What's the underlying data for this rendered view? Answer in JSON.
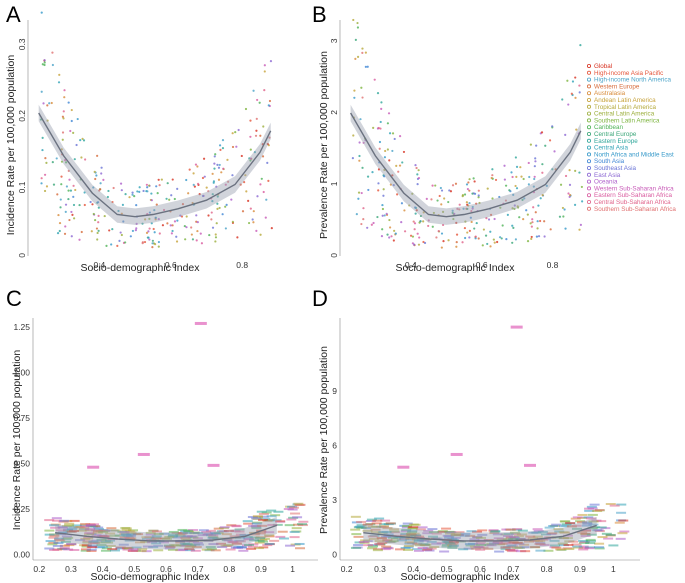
{
  "chart_data": [
    {
      "panel": "A",
      "type": "scatter",
      "xlabel": "Socio-demographic Index",
      "ylabel": "Incidence Rate per 100,000 population",
      "xlim": [
        0.2,
        0.92
      ],
      "ylim": [
        0,
        0.33
      ],
      "xticks": [
        0.4,
        0.6,
        0.8
      ],
      "yticks": [
        0.0,
        0.1,
        0.2,
        0.3
      ],
      "fit_curve": {
        "x": [
          0.23,
          0.3,
          0.38,
          0.45,
          0.5,
          0.55,
          0.62,
          0.7,
          0.78,
          0.85,
          0.88
        ],
        "y": [
          0.2,
          0.14,
          0.088,
          0.058,
          0.055,
          0.058,
          0.066,
          0.078,
          0.1,
          0.145,
          0.175
        ]
      }
    },
    {
      "panel": "B",
      "type": "scatter",
      "xlabel": "Socio-demographic Index",
      "ylabel": "Prevalence Rate per 100,000 population",
      "xlim": [
        0.2,
        0.92
      ],
      "ylim": [
        0,
        3.3
      ],
      "xticks": [
        0.4,
        0.6,
        0.8
      ],
      "yticks": [
        0,
        1,
        2,
        3
      ],
      "fit_curve": {
        "x": [
          0.23,
          0.3,
          0.38,
          0.45,
          0.5,
          0.55,
          0.62,
          0.7,
          0.78,
          0.85,
          0.88
        ],
        "y": [
          2.0,
          1.4,
          0.88,
          0.58,
          0.55,
          0.58,
          0.66,
          0.78,
          1.0,
          1.45,
          1.75
        ]
      },
      "legend": [
        {
          "label": "Global",
          "color": "#d7301f"
        },
        {
          "label": "High-income Asia Pacific",
          "color": "#e5553b"
        },
        {
          "label": "High-income North America",
          "color": "#4aa3c8"
        },
        {
          "label": "Western Europe",
          "color": "#d66a3a"
        },
        {
          "label": "Australasia",
          "color": "#d88c3b"
        },
        {
          "label": "Andean Latin America",
          "color": "#c7a23a"
        },
        {
          "label": "Tropical Latin America",
          "color": "#b5a93a"
        },
        {
          "label": "Central Latin America",
          "color": "#9bae3b"
        },
        {
          "label": "Southern Latin America",
          "color": "#7db43f"
        },
        {
          "label": "Caribbean",
          "color": "#4fb356"
        },
        {
          "label": "Central Europe",
          "color": "#3aa678"
        },
        {
          "label": "Eastern Europe",
          "color": "#2fa69a"
        },
        {
          "label": "Central Asia",
          "color": "#30a3b6"
        },
        {
          "label": "North Africa and Middle East",
          "color": "#3498c9"
        },
        {
          "label": "South Asia",
          "color": "#3e86d4"
        },
        {
          "label": "Southeast Asia",
          "color": "#6a74d6"
        },
        {
          "label": "East Asia",
          "color": "#8c68d3"
        },
        {
          "label": "Oceania",
          "color": "#ad5fcb"
        },
        {
          "label": "Western Sub-Saharan Africa",
          "color": "#c85bb8"
        },
        {
          "label": "Eastern Sub-Saharan Africa",
          "color": "#d95a9f"
        },
        {
          "label": "Central Sub-Saharan Africa",
          "color": "#e0638a"
        },
        {
          "label": "Southern Sub-Saharan Africa",
          "color": "#e07070"
        }
      ]
    },
    {
      "panel": "C",
      "type": "scatter",
      "xlabel": "Socio-demographic Index",
      "ylabel": "Incidence Rate per 100,000 population",
      "xlim": [
        0.18,
        1.08
      ],
      "ylim": [
        -0.03,
        1.3
      ],
      "xticks": [
        0.2,
        0.3,
        0.4,
        0.5,
        0.6,
        0.7,
        0.8,
        0.9,
        1.0
      ],
      "yticks": [
        "0.00",
        "0.25",
        "0.50",
        "0.75",
        "1.00",
        "1.25"
      ],
      "fit_curve": {
        "x": [
          0.25,
          0.35,
          0.45,
          0.55,
          0.65,
          0.75,
          0.85,
          0.95
        ],
        "y": [
          0.12,
          0.1,
          0.085,
          0.075,
          0.075,
          0.08,
          0.1,
          0.16
        ]
      },
      "outliers": [
        {
          "x": 0.71,
          "y": 1.27
        },
        {
          "x": 0.53,
          "y": 0.55
        },
        {
          "x": 0.37,
          "y": 0.48
        },
        {
          "x": 0.75,
          "y": 0.49
        }
      ]
    },
    {
      "panel": "D",
      "type": "scatter",
      "xlabel": "Socio-demographic Index",
      "ylabel": "Prevalence Rate per 100,000 population",
      "xlim": [
        0.18,
        1.08
      ],
      "ylim": [
        -0.3,
        13
      ],
      "xticks": [
        0.2,
        0.3,
        0.4,
        0.5,
        0.6,
        0.7,
        0.8,
        0.9,
        1.0
      ],
      "yticks": [
        "0",
        "3",
        "6",
        "9"
      ],
      "fit_curve": {
        "x": [
          0.25,
          0.35,
          0.45,
          0.55,
          0.65,
          0.75,
          0.85,
          0.95
        ],
        "y": [
          1.2,
          1.0,
          0.85,
          0.75,
          0.75,
          0.8,
          1.0,
          1.6
        ]
      },
      "outliers": [
        {
          "x": 0.71,
          "y": 12.5
        },
        {
          "x": 0.53,
          "y": 5.5
        },
        {
          "x": 0.37,
          "y": 4.8
        },
        {
          "x": 0.75,
          "y": 4.9
        }
      ]
    }
  ]
}
